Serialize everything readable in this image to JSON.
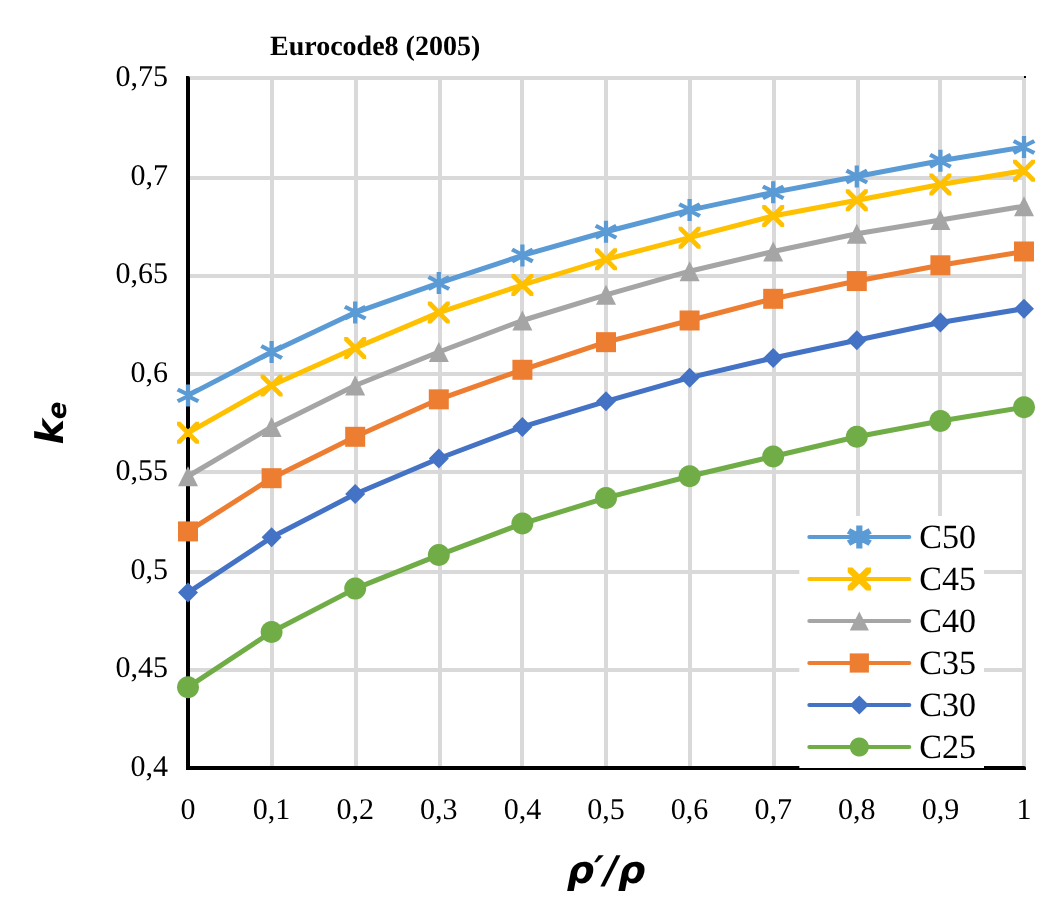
{
  "chart_data": {
    "type": "line",
    "title": "Eurocode8 (2005)",
    "xlabel": "ρ′/ρ",
    "ylabel": "k$_{e}$",
    "x": [
      0,
      0.1,
      0.2,
      0.3,
      0.4,
      0.5,
      0.6,
      0.7,
      0.8,
      0.9,
      1
    ],
    "series": [
      {
        "name": "C50",
        "color": "#5b9bd5",
        "marker": "star",
        "values": [
          0.589,
          0.611,
          0.631,
          0.646,
          0.66,
          0.672,
          0.683,
          0.692,
          0.7,
          0.708,
          0.715
        ]
      },
      {
        "name": "C45",
        "color": "#ffc000",
        "marker": "cross",
        "values": [
          0.57,
          0.594,
          0.613,
          0.631,
          0.645,
          0.658,
          0.669,
          0.68,
          0.688,
          0.696,
          0.703
        ]
      },
      {
        "name": "C40",
        "color": "#a5a5a5",
        "marker": "triangle",
        "values": [
          0.548,
          0.573,
          0.594,
          0.611,
          0.627,
          0.64,
          0.652,
          0.662,
          0.671,
          0.678,
          0.685
        ]
      },
      {
        "name": "C35",
        "color": "#ed7d31",
        "marker": "square",
        "values": [
          0.52,
          0.547,
          0.568,
          0.587,
          0.602,
          0.616,
          0.627,
          0.638,
          0.647,
          0.655,
          0.662
        ]
      },
      {
        "name": "C30",
        "color": "#4472c4",
        "marker": "diamond",
        "values": [
          0.489,
          0.517,
          0.539,
          0.557,
          0.573,
          0.586,
          0.598,
          0.608,
          0.617,
          0.626,
          0.633
        ]
      },
      {
        "name": "C25",
        "color": "#70ad47",
        "marker": "circle",
        "values": [
          0.441,
          0.469,
          0.491,
          0.508,
          0.524,
          0.537,
          0.548,
          0.558,
          0.568,
          0.576,
          0.583
        ]
      }
    ],
    "xlim": [
      0,
      1
    ],
    "xticks": [
      0,
      {
        "value": 0.1,
        "label": "0,1"
      },
      {
        "value": 0.2,
        "label": "0,2"
      },
      {
        "value": 0.3,
        "label": "0,3"
      },
      {
        "value": 0.4,
        "label": "0,4"
      },
      {
        "value": 0.5,
        "label": "0,5"
      },
      {
        "value": 0.6,
        "label": "0,6"
      },
      {
        "value": 0.7,
        "label": "0,7"
      },
      {
        "value": 0.8,
        "label": "0,8"
      },
      {
        "value": 0.9,
        "label": "0,9"
      },
      1
    ],
    "ylim": [
      0.4,
      0.75
    ],
    "yticks": [
      {
        "value": 0.4,
        "label": "0,4"
      },
      {
        "value": 0.45,
        "label": "0,45"
      },
      {
        "value": 0.5,
        "label": "0,5"
      },
      {
        "value": 0.55,
        "label": "0,55"
      },
      {
        "value": 0.6,
        "label": "0,6"
      },
      {
        "value": 0.65,
        "label": "0,65"
      },
      {
        "value": 0.7,
        "label": "0,7"
      },
      {
        "value": 0.75,
        "label": "0,75"
      }
    ],
    "grid": true,
    "legend": "bottom right",
    "line_style": "solid"
  }
}
